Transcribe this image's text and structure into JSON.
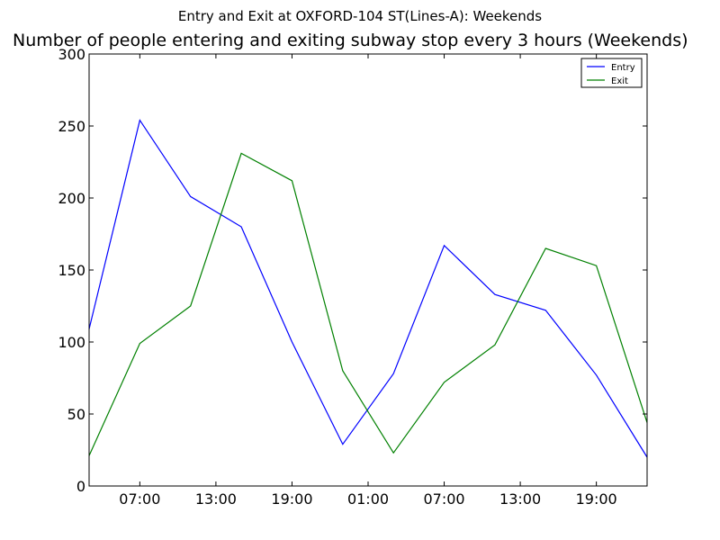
{
  "chart_data": {
    "type": "line",
    "suptitle": "Entry and Exit at OXFORD-104 ST(Lines-A): Weekends",
    "title": "Number of people entering and exiting subway stop every 3 hours (Weekends)",
    "x": [
      0,
      1,
      2,
      3,
      4,
      5,
      6,
      7,
      8,
      9,
      10,
      11
    ],
    "xlim": [
      0,
      11
    ],
    "ylim": [
      0,
      300
    ],
    "yticks": [
      0,
      50,
      100,
      150,
      200,
      250,
      300
    ],
    "xtick_positions": [
      1,
      2.5,
      4,
      5.5,
      7,
      8.5,
      10
    ],
    "xtick_labels": [
      "07:00",
      "13:00",
      "19:00",
      "01:00",
      "07:00",
      "13:00",
      "19:00"
    ],
    "legend_position": "upper-right",
    "series": [
      {
        "name": "Entry",
        "color": "#0000ff",
        "values": [
          109,
          254,
          201,
          180,
          100,
          29,
          78,
          167,
          133,
          122,
          77,
          20
        ]
      },
      {
        "name": "Exit",
        "color": "#008000",
        "values": [
          21,
          99,
          125,
          231,
          212,
          80,
          23,
          72,
          98,
          165,
          153,
          44
        ]
      }
    ]
  }
}
